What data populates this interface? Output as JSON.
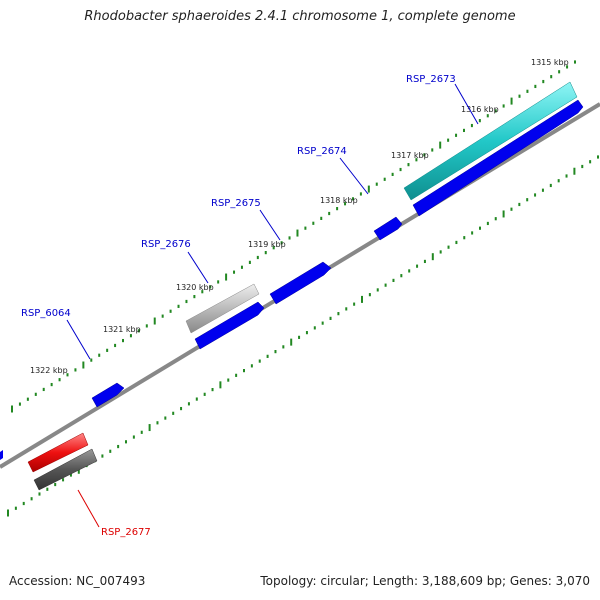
{
  "title": "Rhodobacter sphaeroides 2.4.1 chromosome 1, complete genome",
  "footer": {
    "accession": "Accession: NC_007493",
    "summary": "Topology: circular; Length: 3,188,609 bp; Genes: 3,070"
  },
  "scale": {
    "unit": "kbp",
    "major_ticks": [
      {
        "label": "1315 kbp"
      },
      {
        "label": "1316 kbp"
      },
      {
        "label": "1317 kbp"
      },
      {
        "label": "1318 kbp"
      },
      {
        "label": "1319 kbp"
      },
      {
        "label": "1320 kbp"
      },
      {
        "label": "1321 kbp"
      },
      {
        "label": "1322 kbp"
      }
    ]
  },
  "genes": [
    {
      "name": "RSP_2673",
      "label_color": "#0000cc",
      "color": "#22cccc"
    },
    {
      "name": "RSP_2674",
      "label_color": "#0000cc",
      "color": "#0000ee"
    },
    {
      "name": "RSP_2675",
      "label_color": "#0000cc",
      "color": "#0000ee"
    },
    {
      "name": "RSP_2676",
      "label_color": "#0000cc",
      "color": "#bbbbbb"
    },
    {
      "name": "RSP_6064",
      "label_color": "#0000cc",
      "color": "#0000ee"
    },
    {
      "name": "RSP_2677",
      "label_color": "#dd0000",
      "color": "#ee1111"
    }
  ],
  "colors": {
    "backbone": "#888888",
    "tick": "#228822",
    "forward_gene": "#0000ee",
    "pseudo": "#666666"
  }
}
